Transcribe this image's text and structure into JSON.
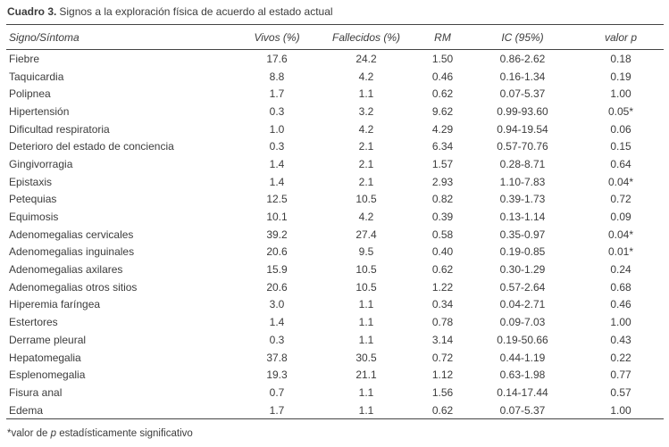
{
  "page": {
    "background_color": "#ffffff",
    "text_color": "#3c3c3c",
    "rule_color": "#444444"
  },
  "table": {
    "title_bold": "Cuadro 3.",
    "title_rest": "Signos a la exploración física de acuerdo al estado actual",
    "columns": [
      "Signo/Síntoma",
      "Vivos (%)",
      "Fallecidos (%)",
      "RM",
      "IC (95%)",
      "valor p"
    ],
    "rows": [
      [
        "Fiebre",
        "17.6",
        "24.2",
        "1.50",
        "0.86-2.62",
        "0.18"
      ],
      [
        "Taquicardia",
        "8.8",
        "4.2",
        "0.46",
        "0.16-1.34",
        "0.19"
      ],
      [
        "Polipnea",
        "1.7",
        "1.1",
        "0.62",
        "0.07-5.37",
        "1.00"
      ],
      [
        "Hipertensión",
        "0.3",
        "3.2",
        "9.62",
        "0.99-93.60",
        "0.05*"
      ],
      [
        "Dificultad respiratoria",
        "1.0",
        "4.2",
        "4.29",
        "0.94-19.54",
        "0.06"
      ],
      [
        "Deterioro del estado de conciencia",
        "0.3",
        "2.1",
        "6.34",
        "0.57-70.76",
        "0.15"
      ],
      [
        "Gingivorragia",
        "1.4",
        "2.1",
        "1.57",
        "0.28-8.71",
        "0.64"
      ],
      [
        "Epistaxis",
        "1.4",
        "2.1",
        "2.93",
        "1.10-7.83",
        "0.04*"
      ],
      [
        "Petequias",
        "12.5",
        "10.5",
        "0.82",
        "0.39-1.73",
        "0.72"
      ],
      [
        "Equimosis",
        "10.1",
        "4.2",
        "0.39",
        "0.13-1.14",
        "0.09"
      ],
      [
        "Adenomegalias cervicales",
        "39.2",
        "27.4",
        "0.58",
        "0.35-0.97",
        "0.04*"
      ],
      [
        "Adenomegalias inguinales",
        "20.6",
        "9.5",
        "0.40",
        "0.19-0.85",
        "0.01*"
      ],
      [
        "Adenomegalias axilares",
        "15.9",
        "10.5",
        "0.62",
        "0.30-1.29",
        "0.24"
      ],
      [
        "Adenomegalias otros sitios",
        "20.6",
        "10.5",
        "1.22",
        "0.57-2.64",
        "0.68"
      ],
      [
        "Hiperemia faríngea",
        "3.0",
        "1.1",
        "0.34",
        "0.04-2.71",
        "0.46"
      ],
      [
        "Estertores",
        "1.4",
        "1.1",
        "0.78",
        "0.09-7.03",
        "1.00"
      ],
      [
        "Derrame pleural",
        "0.3",
        "1.1",
        "3.14",
        "0.19-50.66",
        "0.43"
      ],
      [
        "Hepatomegalia",
        "37.8",
        "30.5",
        "0.72",
        "0.44-1.19",
        "0.22"
      ],
      [
        "Esplenomegalia",
        "19.3",
        "21.1",
        "1.12",
        "0.63-1.98",
        "0.77"
      ],
      [
        "Fisura anal",
        "0.7",
        "1.1",
        "1.56",
        "0.14-17.44",
        "0.57"
      ],
      [
        "Edema",
        "1.7",
        "1.1",
        "0.62",
        "0.07-5.37",
        "1.00"
      ]
    ],
    "footnote": {
      "prefix": "*valor de ",
      "italic": "p",
      "suffix": " estadísticamente significativo"
    }
  }
}
